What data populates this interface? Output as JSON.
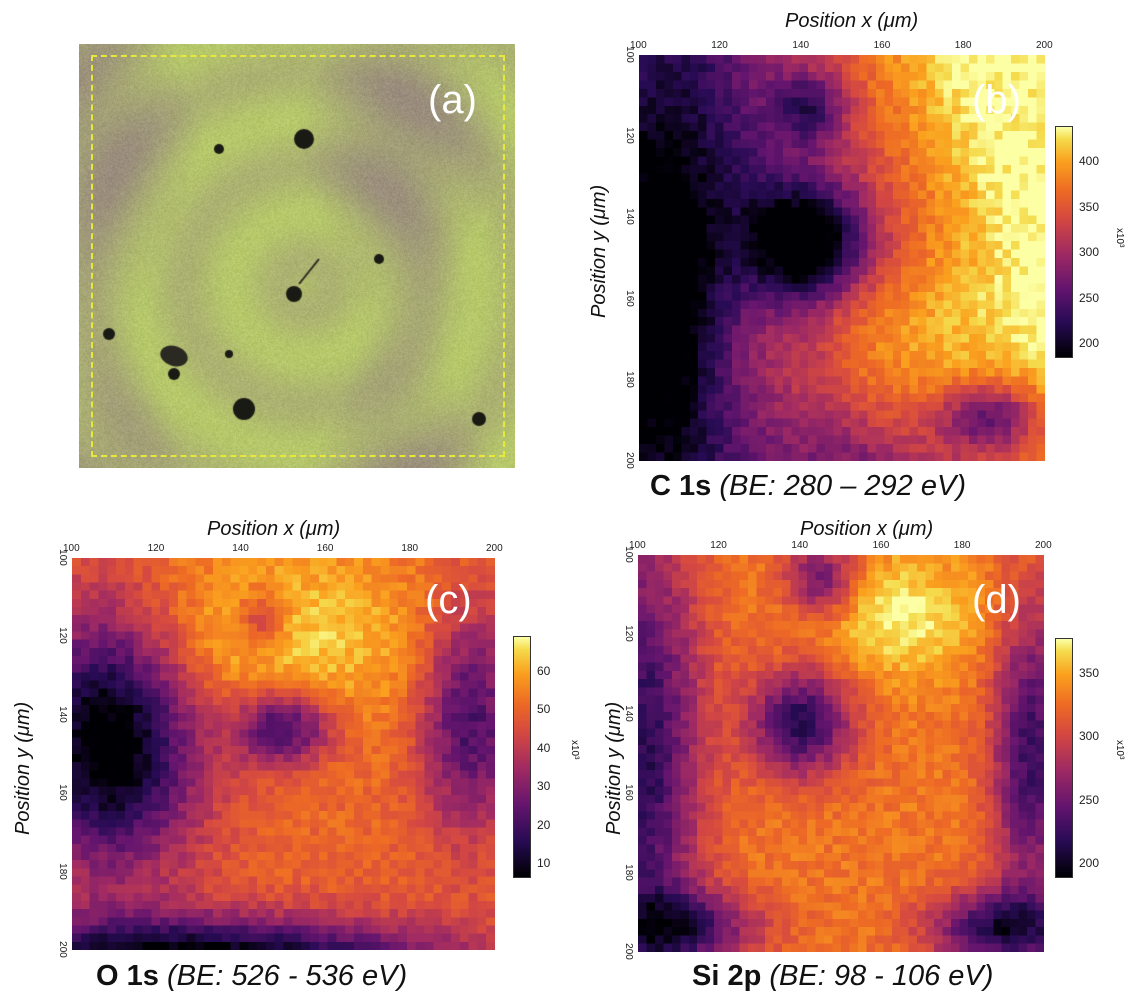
{
  "panels": {
    "a": {
      "letter": "(a)"
    },
    "b": {
      "letter": "(b)",
      "xtitle": "Position x (μm)",
      "ytitle": "Position y (μm)",
      "caption_elem": "C 1s",
      "caption_range": "(BE: 280 – 292 eV)",
      "cb_ticks": [
        "400",
        "350",
        "300",
        "250",
        "200"
      ],
      "cb_unit": "x10³"
    },
    "c": {
      "letter": "(c)",
      "xtitle": "Position x (μm)",
      "ytitle": "Position y (μm)",
      "caption_elem": "O 1s",
      "caption_range": "(BE: 526 - 536 eV)",
      "cb_ticks": [
        "60",
        "50",
        "40",
        "30",
        "20",
        "10"
      ],
      "cb_unit": "x10³"
    },
    "d": {
      "letter": "(d)",
      "xtitle": "Position x (μm)",
      "ytitle": "Position y (μm)",
      "caption_elem": "Si 2p",
      "caption_range": "(BE: 98 - 106 eV)",
      "cb_ticks": [
        "350",
        "300",
        "250",
        "200"
      ],
      "cb_unit": "x10³"
    }
  },
  "x_ticks": [
    "100",
    "120",
    "140",
    "160",
    "180",
    "200"
  ],
  "y_ticks": [
    "100",
    "120",
    "140",
    "160",
    "180",
    "200"
  ],
  "colors": {
    "photo_green": "#b6c86a",
    "photo_purple": "#8a6f86",
    "frame": "#e8e83a"
  },
  "chart_data": [
    {
      "type": "heatmap",
      "panel": "b",
      "title": "C 1s (BE: 280 – 292 eV)",
      "xlabel": "Position x (μm)",
      "ylabel": "Position y (μm)",
      "xlim": [
        100,
        200
      ],
      "ylim": [
        100,
        200
      ],
      "colorbar_range": [
        180,
        440
      ],
      "colorbar_unit": "x10³",
      "grid": 48,
      "description": "bright upper-right region, dark hole near center-left, dark lower-right spot"
    },
    {
      "type": "heatmap",
      "panel": "c",
      "title": "O 1s (BE: 526 - 536 eV)",
      "xlabel": "Position x (μm)",
      "ylabel": "Position y (μm)",
      "xlim": [
        100,
        200
      ],
      "ylim": [
        100,
        200
      ],
      "colorbar_range": [
        3,
        66
      ],
      "colorbar_unit": "x10³",
      "grid": 48
    },
    {
      "type": "heatmap",
      "panel": "d",
      "title": "Si 2p (BE: 98 - 106 eV)",
      "xlabel": "Position x (μm)",
      "ylabel": "Position y (μm)",
      "xlim": [
        100,
        200
      ],
      "ylim": [
        100,
        200
      ],
      "colorbar_range": [
        170,
        380
      ],
      "colorbar_unit": "x10³",
      "grid": 48
    }
  ]
}
